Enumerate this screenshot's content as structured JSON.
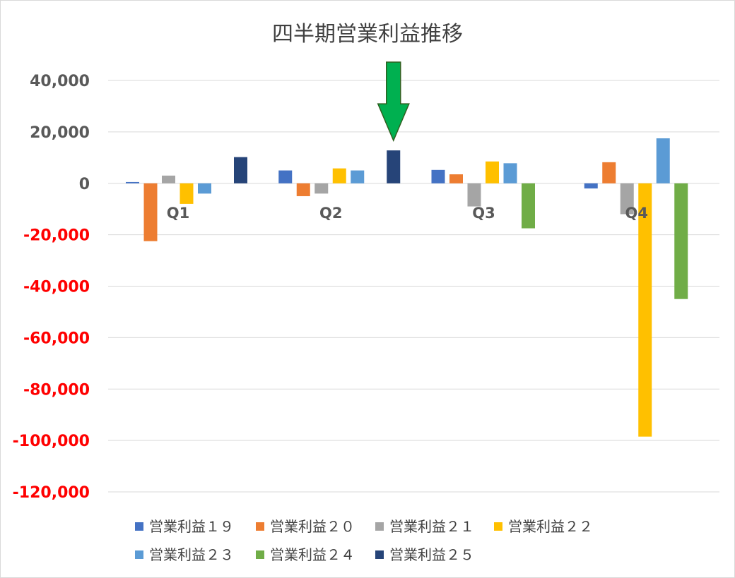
{
  "chart_data": {
    "type": "bar",
    "title": "四半期営業利益推移",
    "categories": [
      "Q1",
      "Q2",
      "Q3",
      "Q4"
    ],
    "ylim": [
      -120000,
      40000
    ],
    "yticks": [
      40000,
      20000,
      0,
      -20000,
      -40000,
      -60000,
      -80000,
      -100000,
      -120000
    ],
    "ytick_labels": [
      "40,000",
      "20,000",
      "0",
      "-20,000",
      "-40,000",
      "-60,000",
      "-80,000",
      "-100,000",
      "-120,000"
    ],
    "grid": true,
    "legend_position": "bottom",
    "negative_tick_color": "#ff0000",
    "positive_tick_color": "#595959",
    "series": [
      {
        "name": "営業利益１９",
        "color": "#4472c4",
        "values": [
          500,
          5000,
          5200,
          -2000
        ]
      },
      {
        "name": "営業利益２０",
        "color": "#ed7d31",
        "values": [
          -22500,
          -5000,
          3500,
          8200
        ]
      },
      {
        "name": "営業利益２１",
        "color": "#a5a5a5",
        "values": [
          3000,
          -4000,
          -9000,
          -12000
        ]
      },
      {
        "name": "営業利益２２",
        "color": "#ffc000",
        "values": [
          -8000,
          5800,
          8500,
          -98500
        ]
      },
      {
        "name": "営業利益２３",
        "color": "#5b9bd5",
        "values": [
          -4000,
          5000,
          7800,
          17500
        ]
      },
      {
        "name": "営業利益２４",
        "color": "#70ad47",
        "values": [
          null,
          null,
          -17500,
          -45000
        ]
      },
      {
        "name": "営業利益２５",
        "color": "#264478",
        "values": [
          10200,
          12800,
          null,
          null
        ]
      }
    ],
    "annotation": {
      "type": "arrow",
      "color": "#00b050",
      "points_to": "Q2 営業利益２５"
    }
  }
}
